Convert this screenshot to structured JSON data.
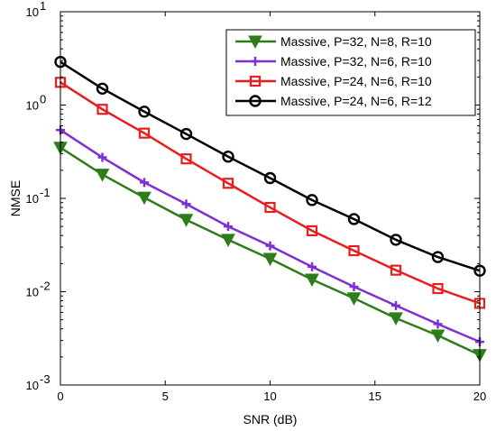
{
  "chart_data": {
    "type": "line",
    "xlabel": "SNR (dB)",
    "ylabel": "NMSE",
    "x_scale": "linear",
    "y_scale": "log",
    "xlim": [
      0,
      20
    ],
    "ylim": [
      0.001,
      10
    ],
    "x_ticks": [
      0,
      5,
      10,
      15,
      20
    ],
    "x_tick_labels": [
      "0",
      "5",
      "10",
      "15",
      "20"
    ],
    "y_ticks": [
      0.001,
      0.01,
      0.1,
      1,
      10
    ],
    "y_tick_labels": [
      {
        "base": "10",
        "exp": "-3"
      },
      {
        "base": "10",
        "exp": "-2"
      },
      {
        "base": "10",
        "exp": "-1"
      },
      {
        "base": "10",
        "exp": "0"
      },
      {
        "base": "10",
        "exp": "1"
      }
    ],
    "grid": false,
    "legend_position": "top-right",
    "x": [
      0,
      2,
      4,
      6,
      8,
      10,
      12,
      14,
      16,
      18,
      20
    ],
    "series": [
      {
        "name": "Massive, P=32, N=8, R=10",
        "color": "#2e7d1b",
        "marker": "triangle-down",
        "values": [
          0.35,
          0.18,
          0.102,
          0.059,
          0.036,
          0.0225,
          0.0135,
          0.0085,
          0.0052,
          0.0034,
          0.0021
        ]
      },
      {
        "name": "Massive, P=32, N=6, R=10",
        "color": "#7f30d0",
        "marker": "plus",
        "values": [
          0.54,
          0.275,
          0.148,
          0.087,
          0.05,
          0.031,
          0.0185,
          0.0113,
          0.0071,
          0.0045,
          0.0029
        ]
      },
      {
        "name": "Massive, P=24, N=6, R=10",
        "color": "#e81e1e",
        "marker": "square-dot",
        "values": [
          1.75,
          0.9,
          0.5,
          0.265,
          0.145,
          0.08,
          0.045,
          0.0275,
          0.017,
          0.0108,
          0.0075
        ]
      },
      {
        "name": "Massive, P=24, N=6, R=12",
        "color": "#000000",
        "marker": "circle",
        "values": [
          2.9,
          1.5,
          0.85,
          0.49,
          0.28,
          0.165,
          0.096,
          0.06,
          0.036,
          0.0235,
          0.0168
        ]
      }
    ]
  }
}
